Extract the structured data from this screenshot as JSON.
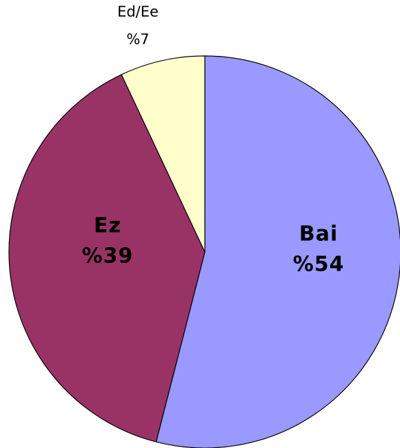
{
  "chart_data": {
    "type": "pie",
    "categories": [
      "Bai",
      "Ez",
      "Ed/Ee"
    ],
    "values": [
      54,
      39,
      7
    ],
    "value_labels": [
      "%54",
      "%39",
      "%7"
    ],
    "colors": [
      "#9999ff",
      "#993366",
      "#ffffcc"
    ]
  }
}
